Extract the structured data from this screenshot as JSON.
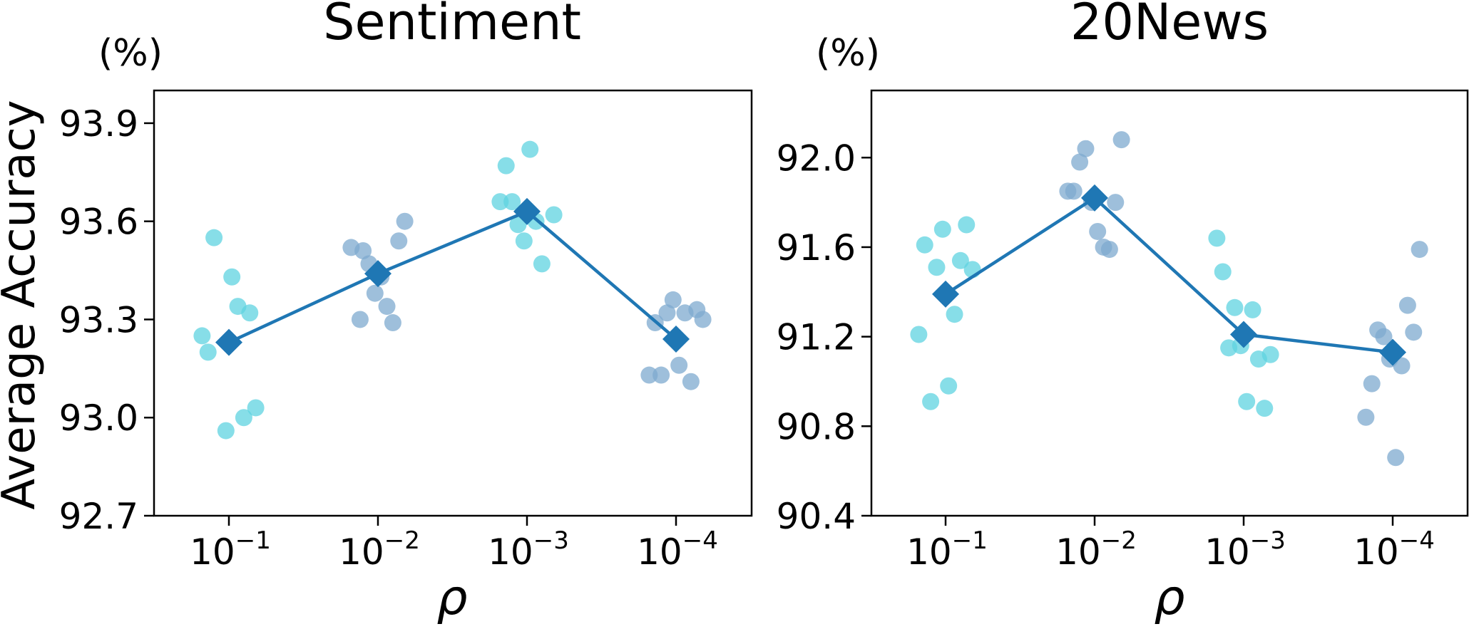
{
  "figure": {
    "ylabel": "Average Accuracy",
    "colors": {
      "jitter_a": "#5fd3e0",
      "jitter_b": "#7ea9cf",
      "mean": "#1f77b4"
    }
  },
  "chart_data": [
    {
      "type": "scatter",
      "title": "Sentiment",
      "unit": "(%)",
      "xlabel": "ρ",
      "categories": [
        "10⁻¹",
        "10⁻²",
        "10⁻³",
        "10⁻⁴"
      ],
      "tick_base": "10",
      "tick_exps": [
        "−1",
        "−2",
        "−3",
        "−4"
      ],
      "ylim": [
        92.7,
        94.0
      ],
      "yticks": [
        "92.7",
        "93.0",
        "93.3",
        "93.6",
        "93.9"
      ],
      "mean_series": {
        "values": [
          93.23,
          93.44,
          93.63,
          93.24
        ]
      },
      "points": [
        [
          [
            -0.18,
            93.25
          ],
          [
            -0.14,
            93.2
          ],
          [
            -0.1,
            93.55
          ],
          [
            -0.02,
            92.96
          ],
          [
            0.02,
            93.43
          ],
          [
            0.06,
            93.34
          ],
          [
            0.1,
            93.0
          ],
          [
            0.14,
            93.32
          ],
          [
            0.18,
            93.03
          ]
        ],
        [
          [
            -0.18,
            93.52
          ],
          [
            -0.12,
            93.3
          ],
          [
            -0.1,
            93.51
          ],
          [
            -0.06,
            93.47
          ],
          [
            -0.02,
            93.38
          ],
          [
            0.02,
            93.43
          ],
          [
            0.06,
            93.34
          ],
          [
            0.1,
            93.29
          ],
          [
            0.14,
            93.54
          ],
          [
            0.18,
            93.6
          ]
        ],
        [
          [
            -0.18,
            93.66
          ],
          [
            -0.14,
            93.77
          ],
          [
            -0.1,
            93.66
          ],
          [
            -0.06,
            93.59
          ],
          [
            -0.02,
            93.54
          ],
          [
            0.02,
            93.82
          ],
          [
            0.06,
            93.6
          ],
          [
            0.1,
            93.47
          ],
          [
            0.18,
            93.62
          ]
        ],
        [
          [
            -0.18,
            93.13
          ],
          [
            -0.14,
            93.29
          ],
          [
            -0.1,
            93.13
          ],
          [
            -0.06,
            93.32
          ],
          [
            -0.02,
            93.36
          ],
          [
            0.02,
            93.16
          ],
          [
            0.06,
            93.32
          ],
          [
            0.1,
            93.11
          ],
          [
            0.14,
            93.33
          ],
          [
            0.18,
            93.3
          ]
        ]
      ],
      "point_colors": [
        "jitter_a",
        "jitter_b",
        "jitter_a",
        "jitter_b"
      ]
    },
    {
      "type": "scatter",
      "title": "20News",
      "unit": "(%)",
      "xlabel": "ρ",
      "categories": [
        "10⁻¹",
        "10⁻²",
        "10⁻³",
        "10⁻⁴"
      ],
      "tick_base": "10",
      "tick_exps": [
        "−1",
        "−2",
        "−3",
        "−4"
      ],
      "ylim": [
        90.4,
        92.3
      ],
      "yticks": [
        "90.4",
        "90.8",
        "91.2",
        "91.6",
        "92.0"
      ],
      "mean_series": {
        "values": [
          91.39,
          91.82,
          91.21,
          91.13
        ]
      },
      "points": [
        [
          [
            -0.18,
            91.21
          ],
          [
            -0.14,
            91.61
          ],
          [
            -0.1,
            90.91
          ],
          [
            -0.06,
            91.51
          ],
          [
            -0.02,
            91.68
          ],
          [
            0.02,
            90.98
          ],
          [
            0.06,
            91.3
          ],
          [
            0.1,
            91.54
          ],
          [
            0.14,
            91.7
          ],
          [
            0.18,
            91.5
          ]
        ],
        [
          [
            -0.18,
            91.85
          ],
          [
            -0.14,
            91.85
          ],
          [
            -0.1,
            91.98
          ],
          [
            -0.06,
            92.04
          ],
          [
            -0.02,
            91.8
          ],
          [
            0.02,
            91.67
          ],
          [
            0.06,
            91.6
          ],
          [
            0.1,
            91.59
          ],
          [
            0.14,
            91.8
          ],
          [
            0.18,
            92.08
          ]
        ],
        [
          [
            -0.18,
            91.64
          ],
          [
            -0.14,
            91.49
          ],
          [
            -0.1,
            91.15
          ],
          [
            -0.06,
            91.33
          ],
          [
            -0.02,
            91.16
          ],
          [
            0.02,
            90.91
          ],
          [
            0.06,
            91.32
          ],
          [
            0.1,
            91.1
          ],
          [
            0.14,
            90.88
          ],
          [
            0.18,
            91.12
          ]
        ],
        [
          [
            -0.18,
            90.84
          ],
          [
            -0.14,
            90.99
          ],
          [
            -0.1,
            91.23
          ],
          [
            -0.06,
            91.2
          ],
          [
            -0.02,
            91.1
          ],
          [
            0.02,
            90.66
          ],
          [
            0.06,
            91.07
          ],
          [
            0.1,
            91.34
          ],
          [
            0.14,
            91.22
          ],
          [
            0.18,
            91.59
          ]
        ]
      ],
      "point_colors": [
        "jitter_a",
        "jitter_b",
        "jitter_a",
        "jitter_b"
      ]
    }
  ]
}
